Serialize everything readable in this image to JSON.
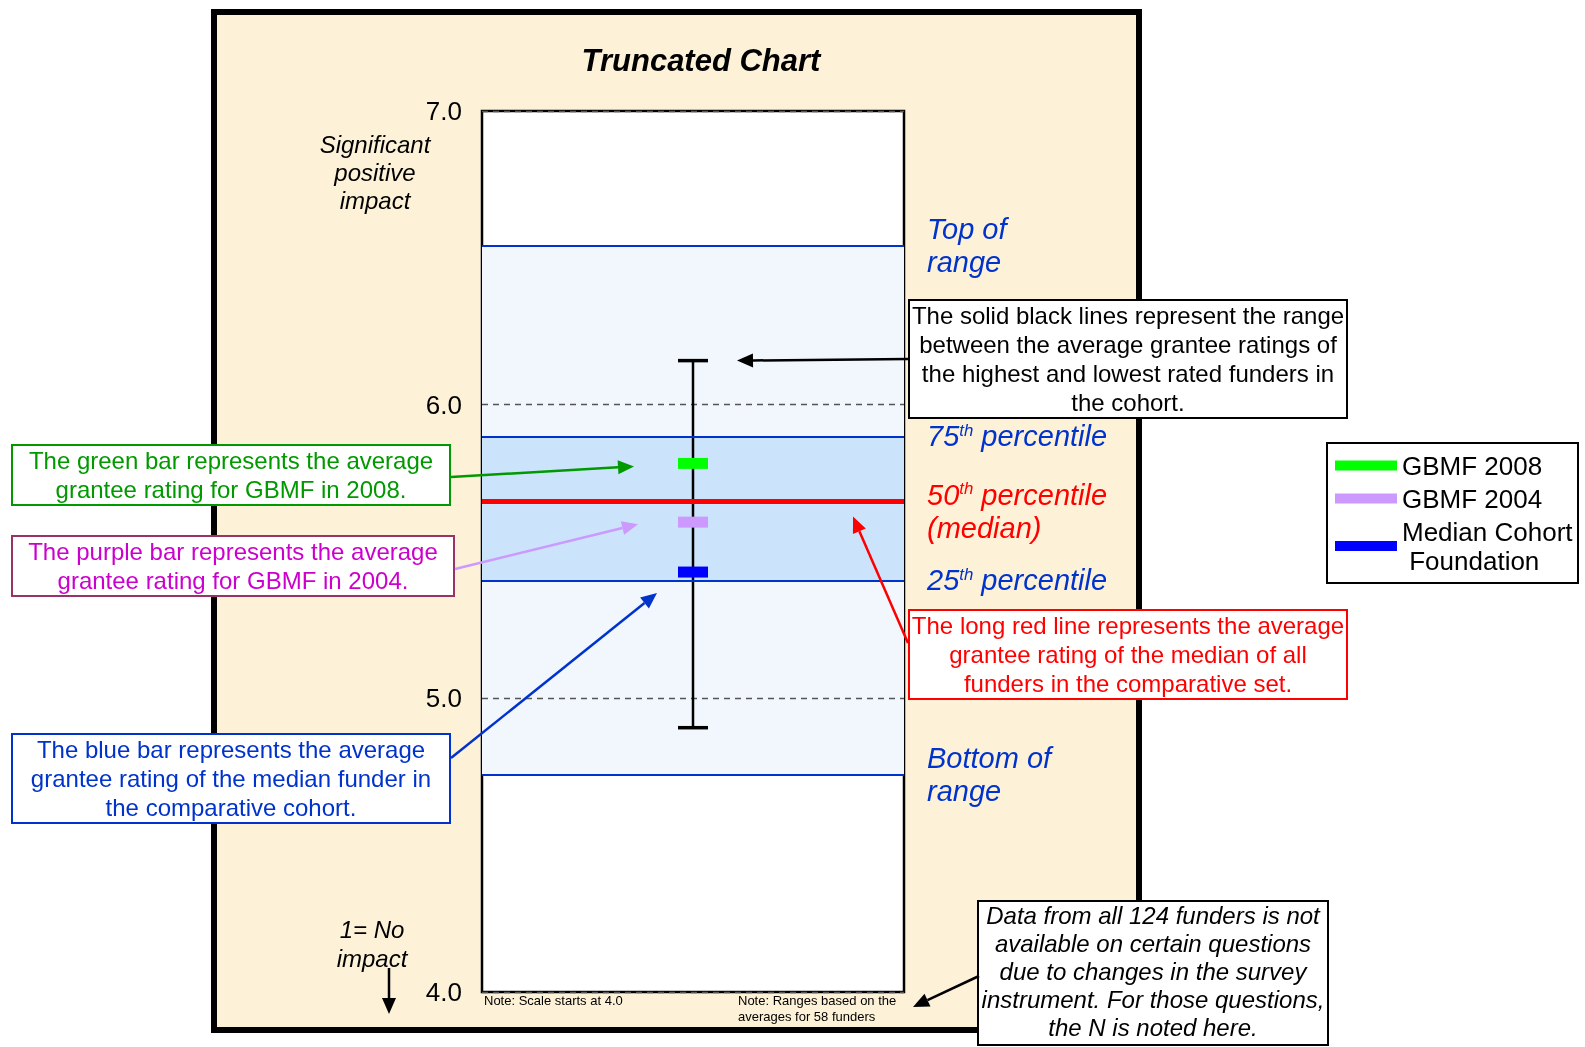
{
  "chart_data": {
    "type": "scatter",
    "title": "Truncated Chart",
    "categories": [
      null
    ],
    "series": [
      {
        "name": "GBMF 2008",
        "color": "#00ff00",
        "values": [
          5.8
        ]
      },
      {
        "name": "GBMF 2004",
        "color": "#cc99ff",
        "values": [
          5.6
        ]
      },
      {
        "name": "Median Cohort Foundation",
        "color": "#0000ff",
        "values": [
          5.43
        ],
        "errors": [
          [
            4.9,
            6.15
          ]
        ]
      }
    ],
    "marker": "square",
    "ylim": [
      4,
      7
    ],
    "yticks": [
      {
        "value": 4,
        "label": "4.0"
      },
      {
        "value": 5,
        "label": "5.0"
      },
      {
        "value": 6,
        "label": "6.0"
      },
      {
        "value": 7,
        "label": "7.0"
      }
    ],
    "grid": "y",
    "tick_labels": "y",
    "legend": "right",
    "bands": [
      {
        "axis": "y",
        "from": 4.74,
        "to": 6.54,
        "color": "#f2f7fe"
      },
      {
        "axis": "y",
        "from": 5.4,
        "to": 5.89,
        "color": "#cce4fb"
      }
    ],
    "ref_lines": [
      {
        "axis": "y",
        "value": 6.54,
        "label": "Top of range",
        "color": "#0033cc"
      },
      {
        "axis": "y",
        "value": 5.89,
        "label": "75$^{th}$ percentile",
        "color": "#0033cc"
      },
      {
        "axis": "y",
        "value": 5.67,
        "label": "50$^{th}$ percentile (median)",
        "color": "#ff0000"
      },
      {
        "axis": "y",
        "value": 5.4,
        "label": "25$^{th}$ percentile",
        "color": "#0033cc"
      },
      {
        "axis": "y",
        "value": 4.74,
        "label": "Bottom of range",
        "color": "#0033cc"
      }
    ],
    "annotations": [
      "Significant positive impact",
      "The solid black lines represent the range between the average grantee ratings of the highest and lowest rated funders in the cohort.",
      "The green bar represents the average grantee rating for GBMF in 2008.",
      "The purple bar represents the average grantee rating for GBMF in 2004.",
      "The long red line represents the average grantee rating of the median of all funders in the comparative set.",
      "The blue bar represents the average grantee rating of the median funder in the comparative cohort.",
      "Data from all 124 funders is not available on certain questions due to changes in the survey instrument. For those questions, the N is noted here.",
      "1= No impact",
      "Note: Scale starts at 4.0",
      "Note: Ranges based on the averages for 58 funders"
    ]
  }
}
